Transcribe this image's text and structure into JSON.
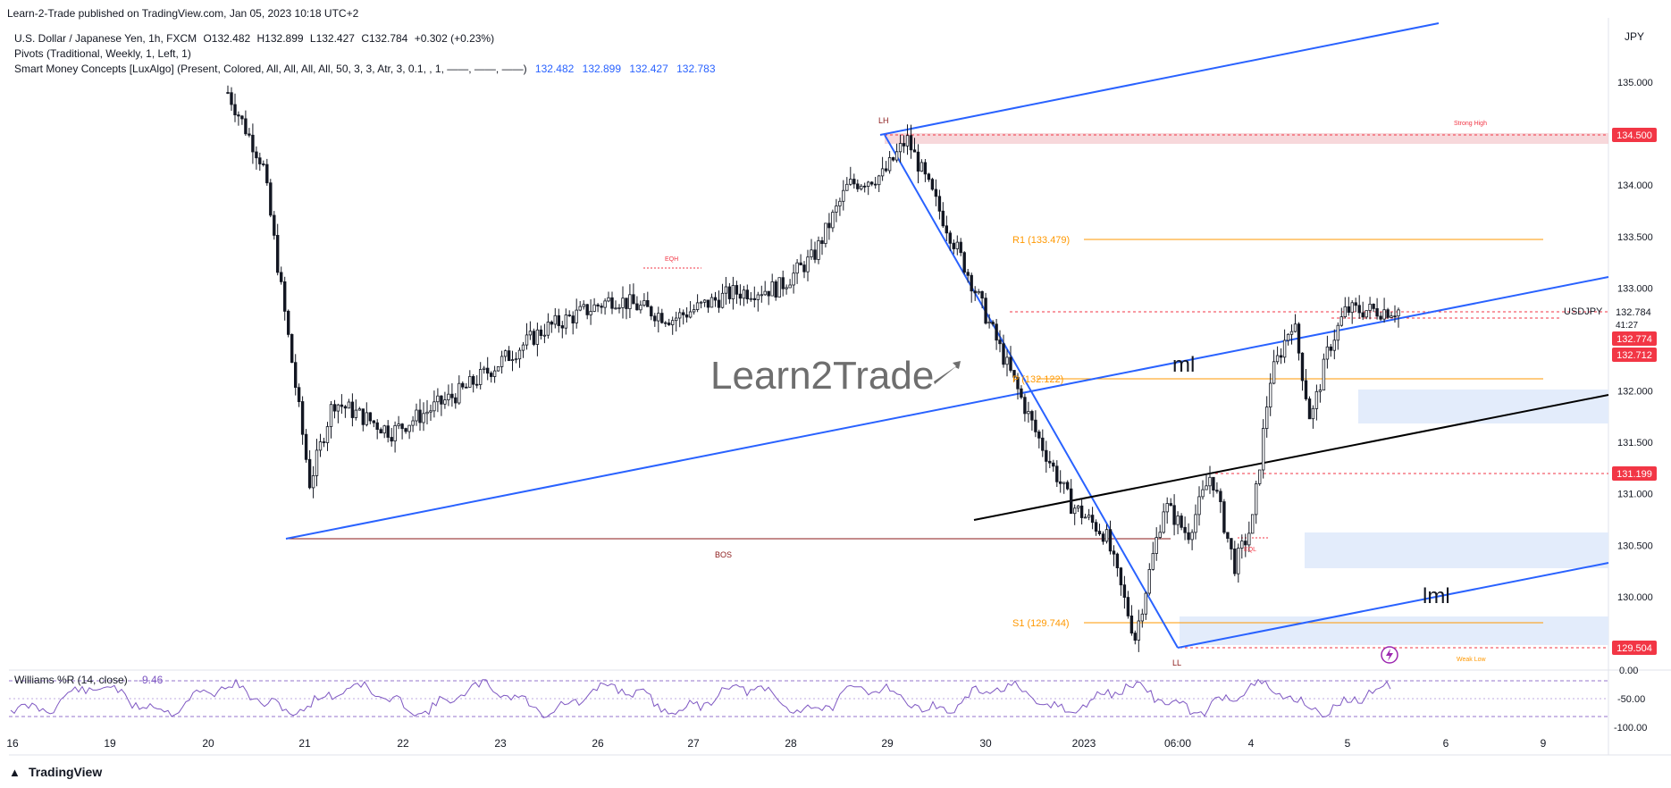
{
  "header": {
    "publisher": "Learn-2-Trade published on TradingView.com, Jan 05, 2023 10:18 UTC+2"
  },
  "legend": {
    "symbol_line": "U.S. Dollar / Japanese Yen, 1h, FXCM",
    "ohlc": {
      "o": "O132.482",
      "h": "H132.899",
      "l": "L132.427",
      "c": "C132.784",
      "chg": "+0.302 (+0.23%)"
    },
    "pivots": "Pivots (Traditional, Weekly, 1, Left, 1)",
    "smc": "Smart Money Concepts [LuxAlgo] (Present, Colored, All, All, All, All, 50, 3, 3, Atr, 3, 0.1, , 1, ——, ——, ——)",
    "smc_values": [
      "132.482",
      "132.899",
      "132.427",
      "132.783"
    ]
  },
  "watermark": {
    "text": "Learn2Trade"
  },
  "footer": {
    "brand": "TradingView"
  },
  "colors": {
    "up": "#131722",
    "down": "#131722",
    "channel": "#2962ff",
    "trendline": "#000000",
    "pivot": "#ff9800",
    "level": "#f23645",
    "label_dark": "#8b1a1a",
    "williams": "#7e57c2",
    "zone": "#e3ecfb",
    "zone_red": "#f4c7cc"
  },
  "chart_data": {
    "type": "candlestick",
    "symbol": "USDJPY",
    "currency": "JPY",
    "timeframe": "1h",
    "ylim": [
      129.3,
      135.5
    ],
    "y_ticks": [
      "135.000",
      "134.500",
      "134.000",
      "133.500",
      "133.000",
      "132.500",
      "132.000",
      "131.500",
      "131.000",
      "130.500",
      "130.000"
    ],
    "x_ticks": [
      "16",
      "19",
      "20",
      "21",
      "22",
      "23",
      "26",
      "27",
      "28",
      "29",
      "30",
      "2023",
      "06:00",
      "4",
      "5",
      "6",
      "9"
    ],
    "price_path": [
      [
        0.0,
        134.9
      ],
      [
        0.03,
        134.2
      ],
      [
        0.07,
        131.1
      ],
      [
        0.09,
        131.9
      ],
      [
        0.14,
        131.6
      ],
      [
        0.2,
        132.0
      ],
      [
        0.27,
        132.6
      ],
      [
        0.33,
        132.9
      ],
      [
        0.38,
        132.7
      ],
      [
        0.43,
        132.95
      ],
      [
        0.47,
        133.0
      ],
      [
        0.5,
        133.3
      ],
      [
        0.53,
        134.0
      ],
      [
        0.56,
        134.1
      ],
      [
        0.58,
        134.45
      ],
      [
        0.61,
        133.7
      ],
      [
        0.63,
        133.2
      ],
      [
        0.66,
        132.4
      ],
      [
        0.69,
        131.6
      ],
      [
        0.72,
        130.9
      ],
      [
        0.75,
        130.6
      ],
      [
        0.775,
        129.6
      ],
      [
        0.8,
        130.9
      ],
      [
        0.82,
        130.6
      ],
      [
        0.84,
        131.2
      ],
      [
        0.86,
        130.3
      ],
      [
        0.875,
        130.7
      ],
      [
        0.89,
        132.1
      ],
      [
        0.91,
        132.7
      ],
      [
        0.925,
        131.7
      ],
      [
        0.94,
        132.4
      ],
      [
        0.955,
        132.784
      ]
    ],
    "price_labels": {
      "strong_high": "134.500",
      "current": "132.784",
      "countdown": "41:27",
      "bid": "132.774",
      "ask": "132.712",
      "level_mid": "131.199",
      "weak_low": "129.504"
    },
    "symbol_tag": "USDJPY",
    "pivots": [
      {
        "label": "R1 (133.479)",
        "value": 133.479
      },
      {
        "label": "P (132.122)",
        "value": 132.122
      },
      {
        "label": "S1 (129.744)",
        "value": 129.744
      }
    ],
    "structure_labels": [
      "LH",
      "LL",
      "EQH",
      "BOS",
      "EQL",
      "Strong High",
      "Weak Low"
    ],
    "annotations": [
      "ml",
      "lml"
    ],
    "williams_r": {
      "title": "Williams %R (14, close)",
      "value": "-9.46",
      "ticks": [
        "0.00",
        "-50.00",
        "-100.00"
      ]
    }
  }
}
